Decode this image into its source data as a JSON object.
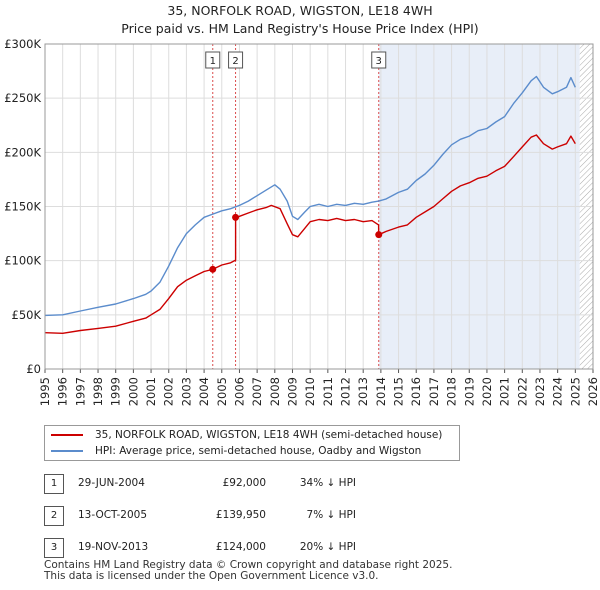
{
  "chart_data": {
    "type": "line",
    "title": "35, NORFOLK ROAD, WIGSTON, LE18 4WH",
    "subtitle": "Price paid vs. HM Land Registry's House Price Index (HPI)",
    "xlabel": "",
    "ylabel": "",
    "xlim": [
      1995,
      2026
    ],
    "ylim": [
      0,
      300000
    ],
    "y_ticks": [
      {
        "value": 0,
        "label": "£0"
      },
      {
        "value": 50000,
        "label": "£50K"
      },
      {
        "value": 100000,
        "label": "£100K"
      },
      {
        "value": 150000,
        "label": "£150K"
      },
      {
        "value": 200000,
        "label": "£200K"
      },
      {
        "value": 250000,
        "label": "£250K"
      },
      {
        "value": 300000,
        "label": "£300K"
      }
    ],
    "x_ticks": [
      "1995",
      "1996",
      "1997",
      "1998",
      "1999",
      "2000",
      "2001",
      "2002",
      "2003",
      "2004",
      "2005",
      "2006",
      "2007",
      "2008",
      "2009",
      "2010",
      "2011",
      "2012",
      "2013",
      "2014",
      "2015",
      "2016",
      "2017",
      "2018",
      "2019",
      "2020",
      "2021",
      "2022",
      "2023",
      "2024",
      "2025",
      "2026"
    ],
    "shaded_from": 2013.88,
    "hatched_from": 2025.25,
    "series": [
      {
        "name": "35, NORFOLK ROAD, WIGSTON, LE18 4WH (semi-detached house)",
        "color": "#cc0000",
        "points": [
          [
            1995,
            33500
          ],
          [
            1996,
            33000
          ],
          [
            1997,
            35500
          ],
          [
            1998,
            37500
          ],
          [
            1999,
            39500
          ],
          [
            2000,
            44000
          ],
          [
            2000.7,
            47000
          ],
          [
            2001,
            50000
          ],
          [
            2001.5,
            55000
          ],
          [
            2002,
            65000
          ],
          [
            2002.5,
            76000
          ],
          [
            2003,
            82000
          ],
          [
            2003.5,
            86000
          ],
          [
            2004,
            90000
          ],
          [
            2004.49,
            92000
          ],
          [
            2005,
            96000
          ],
          [
            2005.5,
            98000
          ],
          [
            2005.78,
            100500
          ],
          [
            2005.78,
            139950
          ],
          [
            2006,
            141000
          ],
          [
            2006.5,
            144000
          ],
          [
            2007,
            147000
          ],
          [
            2007.5,
            149000
          ],
          [
            2007.8,
            151000
          ],
          [
            2008.3,
            148000
          ],
          [
            2008.7,
            134000
          ],
          [
            2009,
            124000
          ],
          [
            2009.3,
            122000
          ],
          [
            2009.7,
            130000
          ],
          [
            2010,
            136000
          ],
          [
            2010.5,
            138000
          ],
          [
            2011,
            137000
          ],
          [
            2011.5,
            139000
          ],
          [
            2012,
            137000
          ],
          [
            2012.5,
            138000
          ],
          [
            2013,
            136000
          ],
          [
            2013.5,
            137000
          ],
          [
            2013.87,
            133000
          ],
          [
            2013.88,
            124000
          ],
          [
            2014.3,
            127000
          ],
          [
            2015,
            131000
          ],
          [
            2015.5,
            133000
          ],
          [
            2016,
            140000
          ],
          [
            2016.5,
            145000
          ],
          [
            2017,
            150000
          ],
          [
            2017.5,
            157000
          ],
          [
            2018,
            164000
          ],
          [
            2018.5,
            169000
          ],
          [
            2019,
            172000
          ],
          [
            2019.5,
            176000
          ],
          [
            2020,
            178000
          ],
          [
            2020.5,
            183000
          ],
          [
            2021,
            187000
          ],
          [
            2021.5,
            196000
          ],
          [
            2022,
            205000
          ],
          [
            2022.5,
            214000
          ],
          [
            2022.8,
            216000
          ],
          [
            2023.2,
            208000
          ],
          [
            2023.7,
            203000
          ],
          [
            2024,
            205000
          ],
          [
            2024.5,
            208000
          ],
          [
            2024.75,
            215000
          ],
          [
            2025,
            208000
          ]
        ]
      },
      {
        "name": "HPI: Average price, semi-detached house, Oadby and Wigston",
        "color": "#5b8ccc",
        "points": [
          [
            1995,
            49500
          ],
          [
            1996,
            50000
          ],
          [
            1997,
            53500
          ],
          [
            1998,
            57000
          ],
          [
            1999,
            60000
          ],
          [
            2000,
            65000
          ],
          [
            2000.7,
            69000
          ],
          [
            2001,
            72000
          ],
          [
            2001.5,
            80000
          ],
          [
            2002,
            95000
          ],
          [
            2002.5,
            112000
          ],
          [
            2003,
            125000
          ],
          [
            2003.5,
            133000
          ],
          [
            2004,
            140000
          ],
          [
            2004.49,
            143000
          ],
          [
            2005,
            146000
          ],
          [
            2005.5,
            148000
          ],
          [
            2006,
            151000
          ],
          [
            2006.5,
            155000
          ],
          [
            2007,
            160000
          ],
          [
            2007.5,
            165000
          ],
          [
            2008,
            170000
          ],
          [
            2008.3,
            166000
          ],
          [
            2008.7,
            155000
          ],
          [
            2009,
            141000
          ],
          [
            2009.3,
            138000
          ],
          [
            2009.7,
            145000
          ],
          [
            2010,
            150000
          ],
          [
            2010.5,
            152000
          ],
          [
            2011,
            150000
          ],
          [
            2011.5,
            152000
          ],
          [
            2012,
            151000
          ],
          [
            2012.5,
            153000
          ],
          [
            2013,
            152000
          ],
          [
            2013.5,
            154000
          ],
          [
            2013.88,
            155000
          ],
          [
            2014.3,
            157000
          ],
          [
            2015,
            163000
          ],
          [
            2015.5,
            166000
          ],
          [
            2016,
            174000
          ],
          [
            2016.5,
            180000
          ],
          [
            2017,
            188000
          ],
          [
            2017.5,
            198000
          ],
          [
            2018,
            207000
          ],
          [
            2018.5,
            212000
          ],
          [
            2019,
            215000
          ],
          [
            2019.5,
            220000
          ],
          [
            2020,
            222000
          ],
          [
            2020.5,
            228000
          ],
          [
            2021,
            233000
          ],
          [
            2021.5,
            245000
          ],
          [
            2022,
            255000
          ],
          [
            2022.5,
            266000
          ],
          [
            2022.8,
            270000
          ],
          [
            2023.2,
            260000
          ],
          [
            2023.7,
            254000
          ],
          [
            2024,
            256000
          ],
          [
            2024.5,
            260000
          ],
          [
            2024.75,
            269000
          ],
          [
            2025,
            260000
          ]
        ]
      }
    ],
    "markers": [
      {
        "label": "1",
        "x": 2004.49,
        "value": 92000
      },
      {
        "label": "2",
        "x": 2005.78,
        "value": 139950
      },
      {
        "label": "3",
        "x": 2013.88,
        "value": 124000
      }
    ]
  },
  "legend": {
    "property_label": "35, NORFOLK ROAD, WIGSTON, LE18 4WH (semi-detached house)",
    "hpi_label": "HPI: Average price, semi-detached house, Oadby and Wigston"
  },
  "sales": [
    {
      "num": "1",
      "date": "29-JUN-2004",
      "price": "£92,000",
      "hpi": "34% ↓ HPI"
    },
    {
      "num": "2",
      "date": "13-OCT-2005",
      "price": "£139,950",
      "hpi": "7% ↓ HPI"
    },
    {
      "num": "3",
      "date": "19-NOV-2013",
      "price": "£124,000",
      "hpi": "20% ↓ HPI"
    }
  ],
  "footer": {
    "line1": "Contains HM Land Registry data © Crown copyright and database right 2025.",
    "line2": "This data is licensed under the Open Government Licence v3.0."
  },
  "colors": {
    "property": "#cc0000",
    "hpi": "#5b8ccc",
    "shade": "#e8eef8",
    "grid": "#dddddd"
  }
}
